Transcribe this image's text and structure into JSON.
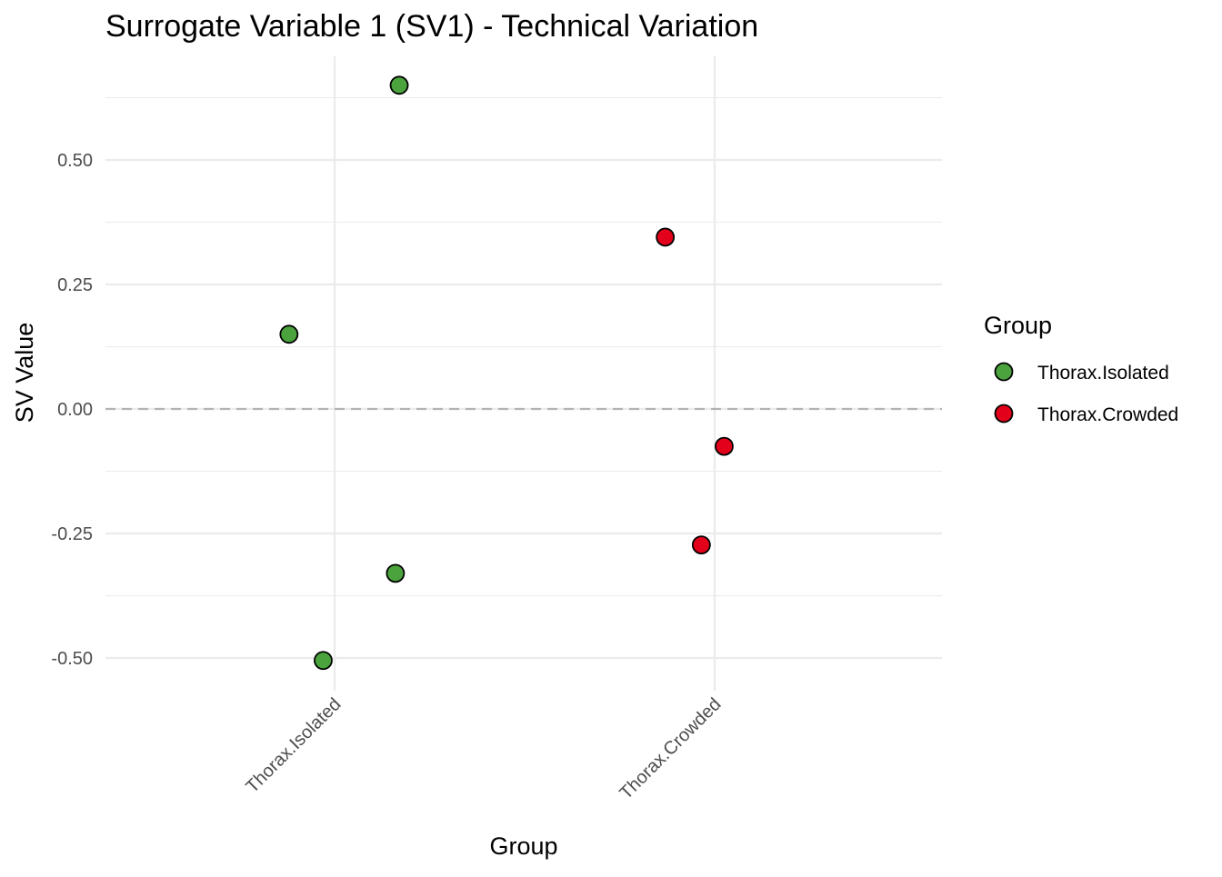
{
  "chart_data": {
    "type": "scatter",
    "title": "Surrogate Variable 1 (SV1) - Technical Variation",
    "xlabel": "Group",
    "ylabel": "SV Value",
    "categories": [
      "Thorax.Isolated",
      "Thorax.Crowded"
    ],
    "ylim": [
      -0.56,
      0.69
    ],
    "yticks": [
      -0.5,
      -0.25,
      0.0,
      0.25,
      0.5
    ],
    "ytick_labels": [
      "-0.50",
      "-0.25",
      "0.00",
      "0.25",
      "0.50"
    ],
    "reference_line": {
      "y": 0.0,
      "style": "dashed",
      "color": "#b3b3b3"
    },
    "grid": true,
    "legend": {
      "title": "Group",
      "position": "right",
      "entries": [
        {
          "label": "Thorax.Isolated",
          "color": "#4aa33c"
        },
        {
          "label": "Thorax.Crowded",
          "color": "#e3001a"
        }
      ]
    },
    "series": [
      {
        "name": "Thorax.Isolated",
        "color": "#4aa33c",
        "points": [
          {
            "category": "Thorax.Isolated",
            "jitter": 0.17,
            "y": 0.65
          },
          {
            "category": "Thorax.Isolated",
            "jitter": -0.12,
            "y": 0.15
          },
          {
            "category": "Thorax.Isolated",
            "jitter": 0.16,
            "y": -0.33
          },
          {
            "category": "Thorax.Isolated",
            "jitter": -0.03,
            "y": -0.505
          }
        ]
      },
      {
        "name": "Thorax.Crowded",
        "color": "#e3001a",
        "points": [
          {
            "category": "Thorax.Crowded",
            "jitter": -0.13,
            "y": 0.345
          },
          {
            "category": "Thorax.Crowded",
            "jitter": 0.025,
            "y": -0.075
          },
          {
            "category": "Thorax.Crowded",
            "jitter": -0.035,
            "y": -0.273
          }
        ]
      }
    ]
  }
}
